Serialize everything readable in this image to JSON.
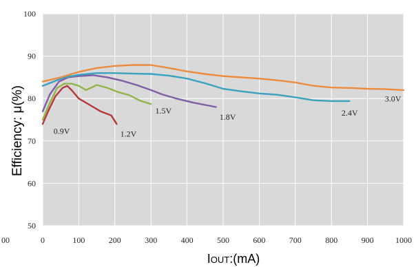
{
  "chart_data": {
    "type": "line",
    "title": "",
    "ylabel": "Efficiency:  μ(%)",
    "xlabel": {
      "main": "I",
      "sub": "OUT",
      "rest": ":(mA)"
    },
    "xlim": [
      0,
      1000
    ],
    "ylim": [
      50,
      100
    ],
    "x_ticks": [
      0,
      100,
      200,
      300,
      400,
      500,
      600,
      700,
      800,
      900,
      1000
    ],
    "y_ticks": [
      50,
      60,
      70,
      80,
      90,
      100
    ],
    "stray_tick_label": "00",
    "grid": true,
    "legend": "none",
    "plot_bg": "#d9d9d9",
    "grid_color": "#ffffff",
    "series": [
      {
        "label": "0.9V",
        "color": "#b5373b",
        "points": [
          [
            0,
            74
          ],
          [
            15,
            77
          ],
          [
            35,
            80.5
          ],
          [
            55,
            82.5
          ],
          [
            68,
            83
          ],
          [
            80,
            82
          ],
          [
            100,
            80
          ],
          [
            130,
            78.5
          ],
          [
            160,
            77
          ],
          [
            190,
            76
          ],
          [
            205,
            74
          ]
        ],
        "label_pos": [
          30,
          71.7
        ]
      },
      {
        "label": "1.2V",
        "color": "#93b44a",
        "points": [
          [
            0,
            75
          ],
          [
            20,
            79
          ],
          [
            40,
            82.5
          ],
          [
            60,
            83.5
          ],
          [
            80,
            83.5
          ],
          [
            100,
            83
          ],
          [
            120,
            82
          ],
          [
            150,
            83.2
          ],
          [
            180,
            82.5
          ],
          [
            210,
            81.5
          ],
          [
            240,
            80.8
          ],
          [
            270,
            79.5
          ],
          [
            300,
            78.7
          ]
        ],
        "label_pos": [
          215,
          71
        ]
      },
      {
        "label": "1.5V",
        "color": "#7d5ea7",
        "points": [
          [
            0,
            77
          ],
          [
            20,
            81
          ],
          [
            45,
            84
          ],
          [
            70,
            85
          ],
          [
            100,
            85.3
          ],
          [
            140,
            85.5
          ],
          [
            180,
            85
          ],
          [
            220,
            84.2
          ],
          [
            260,
            83.2
          ],
          [
            300,
            82
          ],
          [
            330,
            81
          ],
          [
            370,
            80
          ],
          [
            420,
            79
          ],
          [
            480,
            78
          ]
        ],
        "label_pos": [
          312,
          76.5
        ]
      },
      {
        "label": "1.8V",
        "color": "#3aa2c1",
        "points": [
          [
            0,
            83
          ],
          [
            30,
            84
          ],
          [
            60,
            85
          ],
          [
            100,
            85.6
          ],
          [
            150,
            86
          ],
          [
            200,
            86
          ],
          [
            250,
            85.9
          ],
          [
            300,
            85.8
          ],
          [
            350,
            85.4
          ],
          [
            400,
            84.7
          ],
          [
            450,
            83.6
          ],
          [
            500,
            82.3
          ],
          [
            550,
            81.7
          ],
          [
            600,
            81.2
          ],
          [
            650,
            80.9
          ],
          [
            700,
            80.3
          ],
          [
            750,
            79.6
          ],
          [
            800,
            79.4
          ],
          [
            850,
            79.4
          ]
        ],
        "label_pos": [
          490,
          75
        ]
      },
      {
        "label": "2.4V",
        "color": "#ec8b3e",
        "points": [
          [
            0,
            84
          ],
          [
            50,
            85
          ],
          [
            100,
            86.3
          ],
          [
            150,
            87.2
          ],
          [
            200,
            87.7
          ],
          [
            250,
            87.9
          ],
          [
            300,
            87.9
          ],
          [
            350,
            87.2
          ],
          [
            400,
            86.4
          ],
          [
            450,
            85.8
          ],
          [
            500,
            85.3
          ],
          [
            550,
            85
          ],
          [
            600,
            84.7
          ],
          [
            650,
            84.3
          ],
          [
            700,
            83.8
          ],
          [
            750,
            83
          ],
          [
            800,
            82.6
          ],
          [
            850,
            82.5
          ],
          [
            900,
            82.3
          ],
          [
            950,
            82.2
          ],
          [
            1000,
            82
          ]
        ],
        "label_pos": [
          828,
          76
        ]
      },
      {
        "label": "3.0V",
        "color": "#ec8b3e",
        "label_pos": [
          948,
          79.3
        ]
      }
    ]
  }
}
